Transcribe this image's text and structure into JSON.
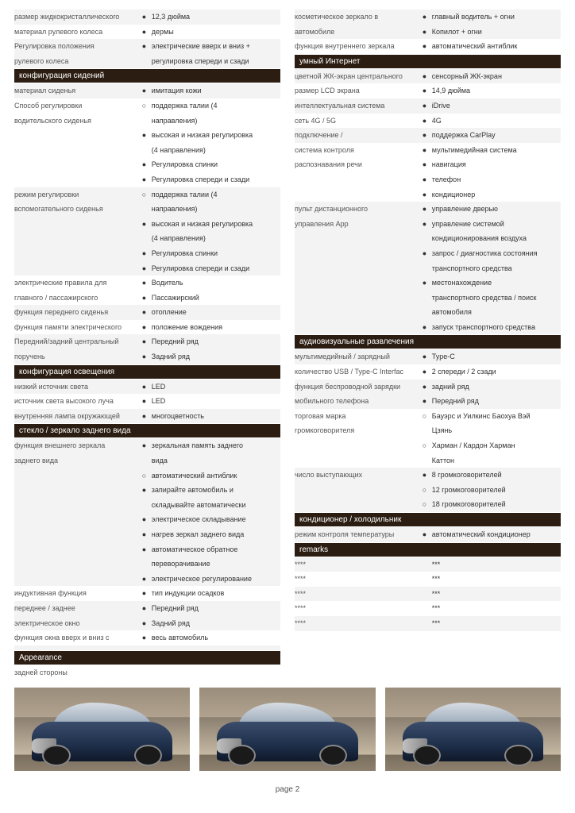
{
  "colors": {
    "header_bg": "#2b1d12",
    "header_fg": "#ffffff",
    "stripe_bg": "#f3f3f3",
    "text": "#333333",
    "label": "#555555",
    "car_body": "#2a3f5c"
  },
  "page_number": "page 2",
  "left_sections": [
    {
      "type": "rows",
      "rows": [
        {
          "label": "размер жидкокристаллического",
          "bullet": "●",
          "value": "12,3 дюйма",
          "stripe": true
        },
        {
          "label": "материал рулевого колеса",
          "bullet": "●",
          "value": "дермы",
          "stripe": false
        },
        {
          "label": "Регулировка положения",
          "bullet": "●",
          "value": "электрические вверх и вниз +",
          "stripe": true
        },
        {
          "label": "рулевого колеса",
          "bullet": "",
          "value": "регулировка спереди и сзади",
          "stripe": true
        }
      ]
    },
    {
      "type": "header",
      "text": "конфигурация сидений"
    },
    {
      "type": "rows",
      "rows": [
        {
          "label": "материал сиденья",
          "bullet": "●",
          "value": "имитация кожи",
          "stripe": true
        },
        {
          "label": "Способ регулировки",
          "bullet": "○",
          "value": "поддержка талии (4",
          "stripe": false
        },
        {
          "label": "водительского сиденья",
          "bullet": "",
          "value": "направления)",
          "stripe": false
        },
        {
          "label": "",
          "bullet": "●",
          "value": "высокая и низкая регулировка",
          "stripe": false
        },
        {
          "label": "",
          "bullet": "",
          "value": "(4 направления)",
          "stripe": false
        },
        {
          "label": "",
          "bullet": "●",
          "value": "Регулировка спинки",
          "stripe": false
        },
        {
          "label": "",
          "bullet": "●",
          "value": "Регулировка спереди и сзади",
          "stripe": false
        },
        {
          "label": "режим регулировки",
          "bullet": "○",
          "value": "поддержка талии (4",
          "stripe": true
        },
        {
          "label": "вспомогательного сиденья",
          "bullet": "",
          "value": "направления)",
          "stripe": true
        },
        {
          "label": "",
          "bullet": "●",
          "value": "высокая и низкая регулировка",
          "stripe": true
        },
        {
          "label": "",
          "bullet": "",
          "value": "(4 направления)",
          "stripe": true
        },
        {
          "label": "",
          "bullet": "●",
          "value": "Регулировка спинки",
          "stripe": true
        },
        {
          "label": "",
          "bullet": "●",
          "value": "Регулировка спереди и сзади",
          "stripe": true
        },
        {
          "label": "электрические правила для",
          "bullet": "●",
          "value": "Водитель",
          "stripe": false
        },
        {
          "label": "главного / пассажирского",
          "bullet": "●",
          "value": "Пассажирский",
          "stripe": false
        },
        {
          "label": "функция переднего сиденья",
          "bullet": "●",
          "value": "отопление",
          "stripe": true
        },
        {
          "label": "функция памяти электрического",
          "bullet": "●",
          "value": "положение вождения",
          "stripe": false
        },
        {
          "label": "Передний/задний центральный",
          "bullet": "●",
          "value": "Передний ряд",
          "stripe": true
        },
        {
          "label": "поручень",
          "bullet": "●",
          "value": "Задний ряд",
          "stripe": true
        }
      ]
    },
    {
      "type": "header",
      "text": "конфигурация освещения"
    },
    {
      "type": "rows",
      "rows": [
        {
          "label": "низкий источник света",
          "bullet": "●",
          "value": "LED",
          "stripe": true
        },
        {
          "label": "источник света высокого луча",
          "bullet": "●",
          "value": "LED",
          "stripe": false
        },
        {
          "label": "внутренняя лампа окружающей",
          "bullet": "●",
          "value": "многоцветность",
          "stripe": true
        }
      ]
    },
    {
      "type": "header",
      "text": "стекло / зеркало заднего вида"
    },
    {
      "type": "rows",
      "rows": [
        {
          "label": "функция внешнего зеркала",
          "bullet": "●",
          "value": "зеркальная память заднего",
          "stripe": true
        },
        {
          "label": "заднего вида",
          "bullet": "",
          "value": "вида",
          "stripe": true
        },
        {
          "label": "",
          "bullet": "○",
          "value": "автоматический антиблик",
          "stripe": true
        },
        {
          "label": "",
          "bullet": "●",
          "value": "запирайте автомобиль и",
          "stripe": true
        },
        {
          "label": "",
          "bullet": "",
          "value": "складывайте автоматически",
          "stripe": true
        },
        {
          "label": "",
          "bullet": "●",
          "value": "электрическое складывание",
          "stripe": true
        },
        {
          "label": "",
          "bullet": "●",
          "value": "нагрев зеркал заднего вида",
          "stripe": true
        },
        {
          "label": "",
          "bullet": "●",
          "value": "автоматическое обратное",
          "stripe": true
        },
        {
          "label": "",
          "bullet": "",
          "value": "переворачивание",
          "stripe": true
        },
        {
          "label": "",
          "bullet": "●",
          "value": "электрическое регулирование",
          "stripe": true
        },
        {
          "label": "индуктивная функция",
          "bullet": "●",
          "value": "тип индукции осадков",
          "stripe": false
        },
        {
          "label": "переднее / заднее",
          "bullet": "●",
          "value": "Передний ряд",
          "stripe": true
        },
        {
          "label": "электрическое окно",
          "bullet": "●",
          "value": "Задний ряд",
          "stripe": true
        },
        {
          "label": "функция окна вверх и вниз с",
          "bullet": "●",
          "value": "весь автомобиль",
          "stripe": false
        },
        {
          "label": "",
          "bullet": "",
          "value": "",
          "stripe": true
        }
      ]
    },
    {
      "type": "header",
      "text": "Appearance"
    },
    {
      "type": "rows",
      "rows": [
        {
          "label": "задней стороны",
          "bullet": "",
          "value": "",
          "stripe": false
        }
      ]
    }
  ],
  "right_sections": [
    {
      "type": "rows",
      "rows": [
        {
          "label": "косметическое зеркало в",
          "bullet": "●",
          "value": "главный водитель + огни",
          "stripe": true
        },
        {
          "label": "автомобиле",
          "bullet": "●",
          "value": "Копилот + огни",
          "stripe": true
        },
        {
          "label": "функция внутреннего зеркала",
          "bullet": "●",
          "value": "автоматический антиблик",
          "stripe": false
        }
      ]
    },
    {
      "type": "header",
      "text": "умный Интернет"
    },
    {
      "type": "rows",
      "rows": [
        {
          "label": "цветной ЖК-экран центрального",
          "bullet": "●",
          "value": "сенсорный ЖК-экран",
          "stripe": true
        },
        {
          "label": "размер LCD экрана",
          "bullet": "●",
          "value": "14,9 дюйма",
          "stripe": false
        },
        {
          "label": "интеллектуальная система",
          "bullet": "●",
          "value": "iDrive",
          "stripe": true
        },
        {
          "label": "сеть 4G / 5G",
          "bullet": "●",
          "value": "4G",
          "stripe": false
        },
        {
          "label": "подключение /",
          "bullet": "●",
          "value": "поддержка CarPlay",
          "stripe": true
        },
        {
          "label": "система контроля",
          "bullet": "●",
          "value": "мультимедийная система",
          "stripe": false
        },
        {
          "label": "распознавания речи",
          "bullet": "●",
          "value": "навигация",
          "stripe": false
        },
        {
          "label": "",
          "bullet": "●",
          "value": "телефон",
          "stripe": false
        },
        {
          "label": "",
          "bullet": "●",
          "value": "кондиционер",
          "stripe": false
        },
        {
          "label": "пульт дистанционного",
          "bullet": "●",
          "value": "управление дверью",
          "stripe": true
        },
        {
          "label": "управления App",
          "bullet": "●",
          "value": "управление системой",
          "stripe": true
        },
        {
          "label": "",
          "bullet": "",
          "value": "кондиционирования воздуха",
          "stripe": true
        },
        {
          "label": "",
          "bullet": "●",
          "value": "запрос / диагностика состояния",
          "stripe": true
        },
        {
          "label": "",
          "bullet": "",
          "value": "транспортного средства",
          "stripe": true
        },
        {
          "label": "",
          "bullet": "●",
          "value": "местонахождение",
          "stripe": true
        },
        {
          "label": "",
          "bullet": "",
          "value": "транспортного средства / поиск",
          "stripe": true
        },
        {
          "label": "",
          "bullet": "",
          "value": "автомобиля",
          "stripe": true
        },
        {
          "label": "",
          "bullet": "●",
          "value": "запуск транспортного средства",
          "stripe": true
        }
      ]
    },
    {
      "type": "header",
      "text": "аудиовизуальные развлечения"
    },
    {
      "type": "rows",
      "rows": [
        {
          "label": "мультимедийный / зарядный",
          "bullet": "●",
          "value": "Type-C",
          "stripe": true
        },
        {
          "label": "количество USB / Type-C Interfac",
          "bullet": "●",
          "value": "2 спереди / 2 сзади",
          "stripe": false
        },
        {
          "label": "функция беспроводной зарядки",
          "bullet": "●",
          "value": "задний ряд",
          "stripe": true
        },
        {
          "label": "мобильного телефона",
          "bullet": "●",
          "value": "Передний ряд",
          "stripe": true
        },
        {
          "label": "торговая марка",
          "bullet": "○",
          "value": "Бауэрс и Уилкинс Баохуа Вэй",
          "stripe": false
        },
        {
          "label": "громкоговорителя",
          "bullet": "",
          "value": "Цзянь",
          "stripe": false
        },
        {
          "label": "",
          "bullet": "○",
          "value": "Харман / Кардон Харман",
          "stripe": false
        },
        {
          "label": "",
          "bullet": "",
          "value": "Каттон",
          "stripe": false
        },
        {
          "label": "число выступающих",
          "bullet": "●",
          "value": "8 громкоговорителей",
          "stripe": true
        },
        {
          "label": "",
          "bullet": "○",
          "value": "12 громкоговорителей",
          "stripe": true
        },
        {
          "label": "",
          "bullet": "○",
          "value": "18 громкоговорителей",
          "stripe": true
        }
      ]
    },
    {
      "type": "header",
      "text": "кондиционер / холодильник"
    },
    {
      "type": "rows",
      "rows": [
        {
          "label": "режим контроля температуры",
          "bullet": "●",
          "value": "автоматический кондиционер",
          "stripe": true
        }
      ]
    },
    {
      "type": "header",
      "text": "remarks"
    },
    {
      "type": "rows",
      "rows": [
        {
          "label": "****",
          "bullet": "",
          "value": "***",
          "stripe": true
        },
        {
          "label": "****",
          "bullet": "",
          "value": "***",
          "stripe": false
        },
        {
          "label": "****",
          "bullet": "",
          "value": "***",
          "stripe": true
        },
        {
          "label": "****",
          "bullet": "",
          "value": "***",
          "stripe": false
        },
        {
          "label": "****",
          "bullet": "",
          "value": "***",
          "stripe": true
        }
      ]
    }
  ]
}
